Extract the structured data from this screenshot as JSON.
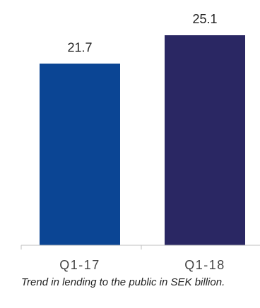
{
  "chart_data": {
    "type": "bar",
    "categories": [
      "Q1-17",
      "Q1-18"
    ],
    "values": [
      21.7,
      25.1
    ],
    "data_labels": [
      "21.7",
      "25.1"
    ],
    "colors": [
      "#0b4594",
      "#2a2763"
    ],
    "ylim": [
      0,
      25.1
    ],
    "grid": false,
    "legend": "none"
  },
  "caption": "Trend in lending to the public in SEK billion."
}
